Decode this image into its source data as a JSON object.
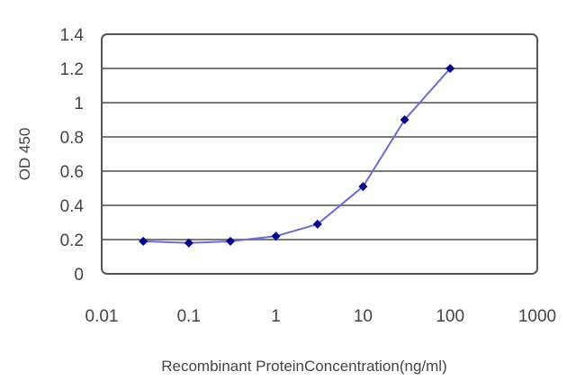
{
  "chart_data": {
    "type": "line",
    "title": "",
    "xlabel": "Recombinant ProteinConcentration(ng/ml)",
    "ylabel": "OD 450",
    "xscale": "log",
    "xlim": [
      0.01,
      1000
    ],
    "ylim": [
      0,
      1.4
    ],
    "x_ticks": [
      "0.01",
      "0.1",
      "1",
      "10",
      "100",
      "1000"
    ],
    "y_ticks": [
      "0",
      "0.2",
      "0.4",
      "0.6",
      "0.8",
      "1",
      "1.2",
      "1.4"
    ],
    "grid": "horizontal",
    "legend": null,
    "series": [
      {
        "name": "OD 450",
        "color": "#00008b",
        "line_color": "#6a6ad0",
        "marker": "diamond",
        "x": [
          0.03,
          0.1,
          0.3,
          1,
          3,
          10,
          30,
          100
        ],
        "values": [
          0.19,
          0.18,
          0.19,
          0.22,
          0.29,
          0.51,
          0.9,
          1.2
        ]
      }
    ]
  },
  "colors": {
    "grid": "#7a7a7a",
    "frame": "#555555",
    "marker": "#00008b",
    "line": "#6a6ad0"
  }
}
